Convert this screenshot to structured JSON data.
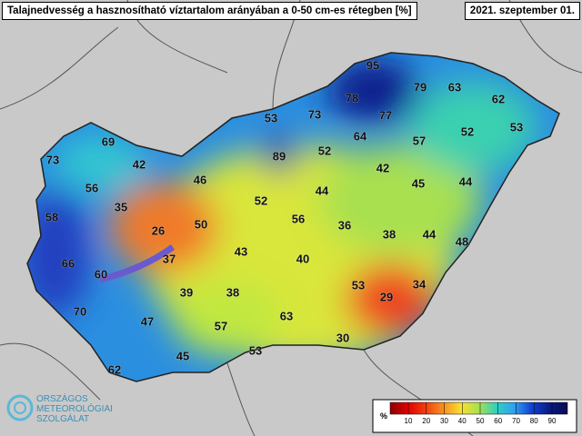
{
  "header": {
    "title": "Talajnedvesség a hasznosítható víztartalom arányában a 0-50 cm-es rétegben [%]",
    "date": "2021. szeptember 01."
  },
  "stations": [
    95,
    79,
    63,
    62,
    53,
    78,
    77,
    73,
    53,
    64,
    57,
    52,
    69,
    73,
    89,
    52,
    42,
    42,
    46,
    45,
    44,
    56,
    44,
    52,
    35,
    58,
    56,
    50,
    26,
    36,
    38,
    44,
    48,
    43,
    40,
    37,
    66,
    60,
    53,
    29,
    34,
    39,
    38,
    70,
    63,
    47,
    57,
    30,
    53,
    45,
    62
  ],
  "legend": {
    "unit": "%",
    "ticks": [
      10,
      20,
      30,
      40,
      50,
      60,
      70,
      80,
      90
    ]
  },
  "logo": {
    "line1": "ORSZÁGOS",
    "line2": "METEOROLÓGIAI",
    "line3": "SZOLGÁLAT"
  }
}
